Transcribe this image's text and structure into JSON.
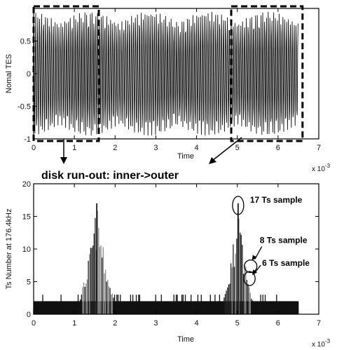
{
  "chart_data": [
    {
      "type": "line",
      "title": "",
      "xlabel": "Time",
      "ylabel": "Nomal TES",
      "x_scale_label": "x 10",
      "x_scale_exp": "-3",
      "xlim": [
        0,
        7
      ],
      "ylim": [
        -1,
        1
      ],
      "xticks": [
        "0",
        "1",
        "2",
        "3",
        "4",
        "5",
        "6",
        "7"
      ],
      "yticks": [
        "0.5",
        "0",
        "-0.5",
        "-1"
      ],
      "signal_extent": [
        0,
        6.5
      ],
      "signal_amplitude": 0.95,
      "highlight_windows": [
        [
          0,
          1.6
        ],
        [
          4.85,
          6.6
        ]
      ]
    },
    {
      "type": "bar",
      "title": "disk run-out: inner->outer",
      "xlabel": "Time",
      "ylabel": "Ts Number at 176.4kHz",
      "x_scale_label": "x 10",
      "x_scale_exp": "-3",
      "xlim": [
        0,
        7
      ],
      "ylim": [
        0,
        20
      ],
      "xticks": [
        "0",
        "1",
        "2",
        "3",
        "4",
        "5",
        "6",
        "7"
      ],
      "yticks": [
        "0",
        "5",
        "10",
        "15",
        "20"
      ],
      "baseline_value": 2,
      "peaks": [
        {
          "center": 1.55,
          "max": 17,
          "width": 0.55
        },
        {
          "center": 5.02,
          "max": 17,
          "width": 0.45
        }
      ],
      "annotations": [
        {
          "text": "17 Ts sample",
          "x": 5.02,
          "y": 17
        },
        {
          "text": "8 Ts sample",
          "x": 5.12,
          "y": 8
        },
        {
          "text": "6 Ts sample",
          "x": 5.3,
          "y": 6
        }
      ]
    }
  ]
}
